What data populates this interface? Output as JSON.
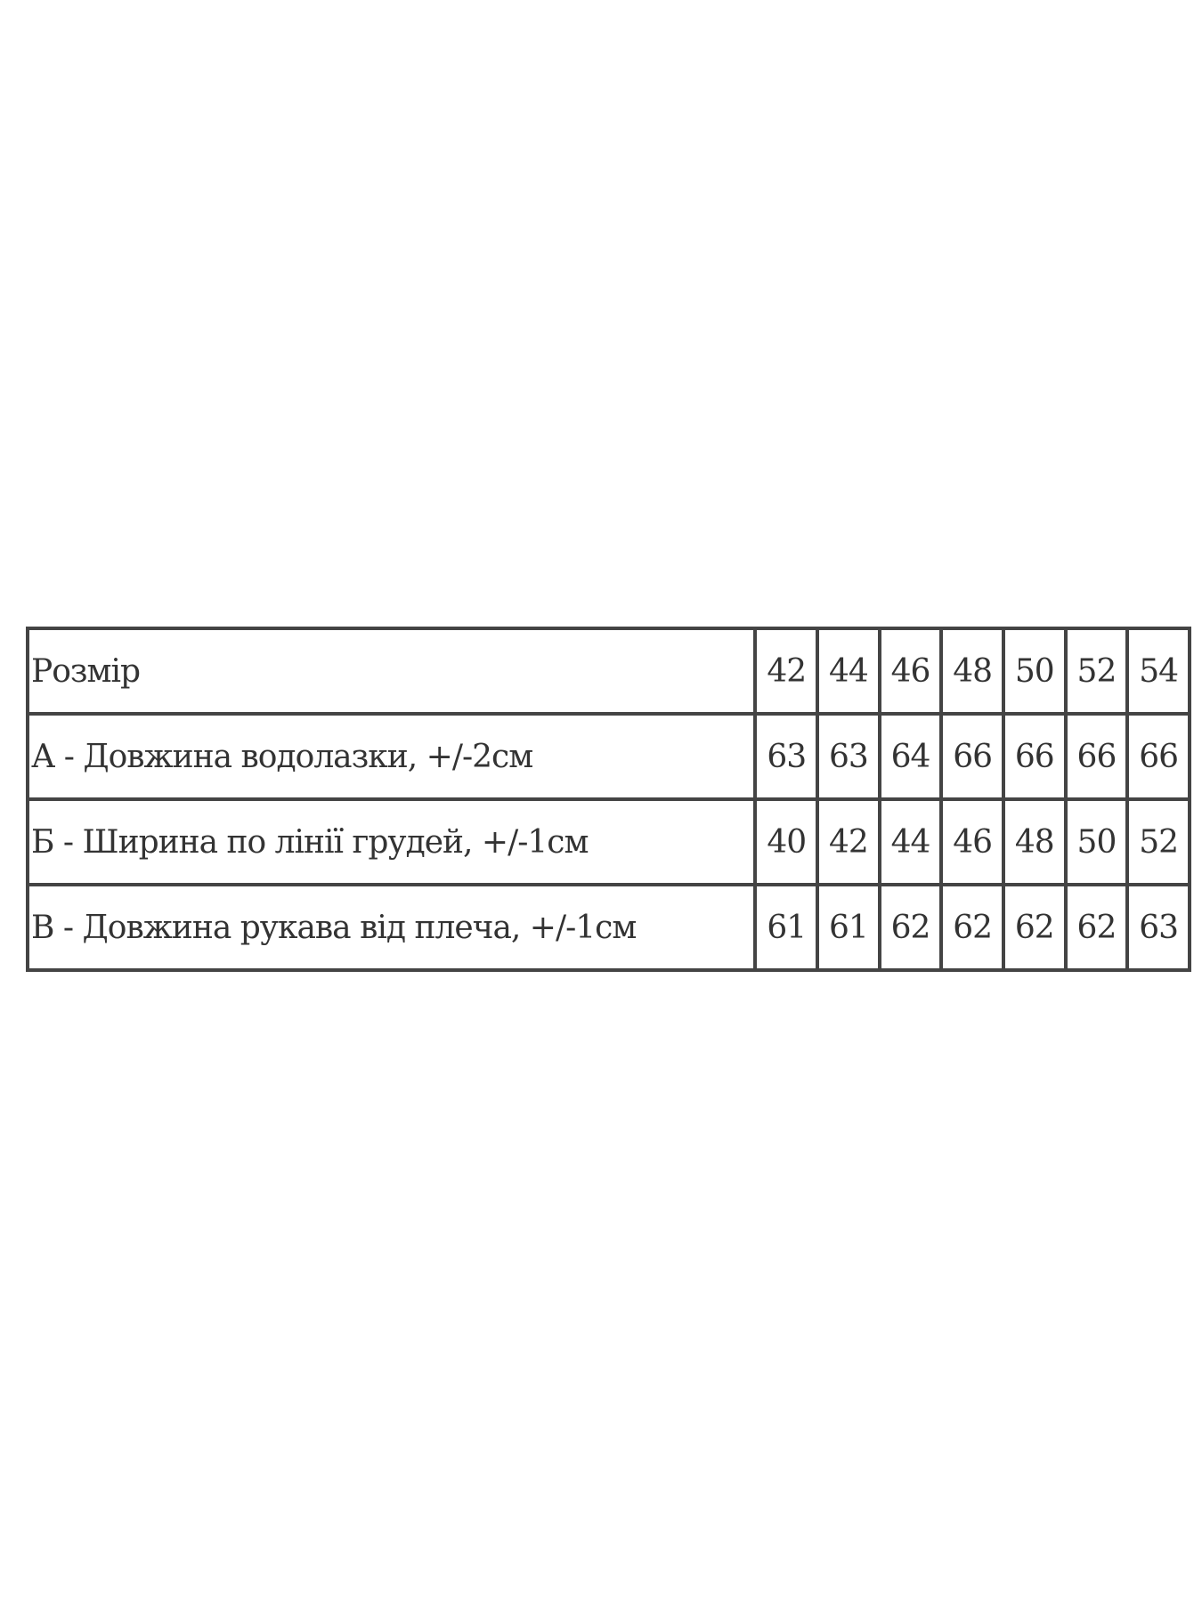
{
  "table": {
    "header": {
      "label": "Розмір",
      "values": [
        "42",
        "44",
        "46",
        "48",
        "50",
        "52",
        "54"
      ]
    },
    "rows": [
      {
        "label": "А - Довжина водолазки, +/-2см",
        "values": [
          "63",
          "63",
          "64",
          "66",
          "66",
          "66",
          "66"
        ]
      },
      {
        "label": "Б - Ширина по лінії грудей, +/-1см",
        "values": [
          "40",
          "42",
          "44",
          "46",
          "48",
          "50",
          "52"
        ]
      },
      {
        "label": "В - Довжина рукава від плеча, +/-1см",
        "values": [
          "61",
          "61",
          "62",
          "62",
          "62",
          "62",
          "63"
        ]
      }
    ]
  }
}
